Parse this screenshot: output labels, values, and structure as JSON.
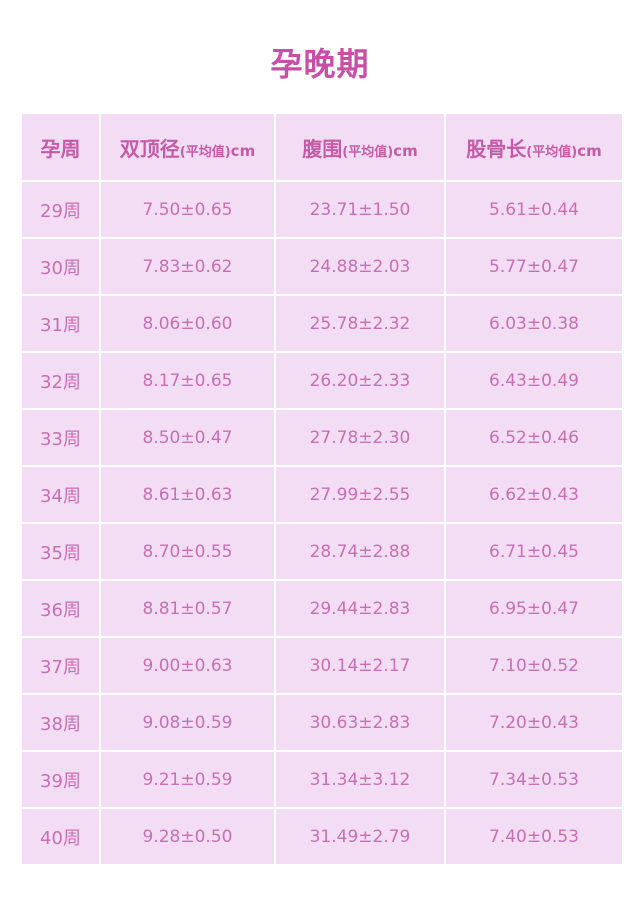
{
  "title": "孕晚期",
  "table": {
    "headers": [
      {
        "main": "孕周",
        "sub": "",
        "unit": ""
      },
      {
        "main": "双顶径",
        "sub": "(平均值)",
        "unit": "cm"
      },
      {
        "main": "腹围",
        "sub": "(平均值)",
        "unit": "cm"
      },
      {
        "main": "股骨长",
        "sub": "(平均值)",
        "unit": "cm"
      }
    ],
    "rows": [
      [
        "29周",
        "7.50±0.65",
        "23.71±1.50",
        "5.61±0.44"
      ],
      [
        "30周",
        "7.83±0.62",
        "24.88±2.03",
        "5.77±0.47"
      ],
      [
        "31周",
        "8.06±0.60",
        "25.78±2.32",
        "6.03±0.38"
      ],
      [
        "32周",
        "8.17±0.65",
        "26.20±2.33",
        "6.43±0.49"
      ],
      [
        "33周",
        "8.50±0.47",
        "27.78±2.30",
        "6.52±0.46"
      ],
      [
        "34周",
        "8.61±0.63",
        "27.99±2.55",
        "6.62±0.43"
      ],
      [
        "35周",
        "8.70±0.55",
        "28.74±2.88",
        "6.71±0.45"
      ],
      [
        "36周",
        "8.81±0.57",
        "29.44±2.83",
        "6.95±0.47"
      ],
      [
        "37周",
        "9.00±0.63",
        "30.14±2.17",
        "7.10±0.52"
      ],
      [
        "38周",
        "9.08±0.59",
        "30.63±2.83",
        "7.20±0.43"
      ],
      [
        "39周",
        "9.21±0.59",
        "31.34±3.12",
        "7.34±0.53"
      ],
      [
        "40周",
        "9.28±0.50",
        "31.49±2.79",
        "7.40±0.53"
      ]
    ]
  }
}
